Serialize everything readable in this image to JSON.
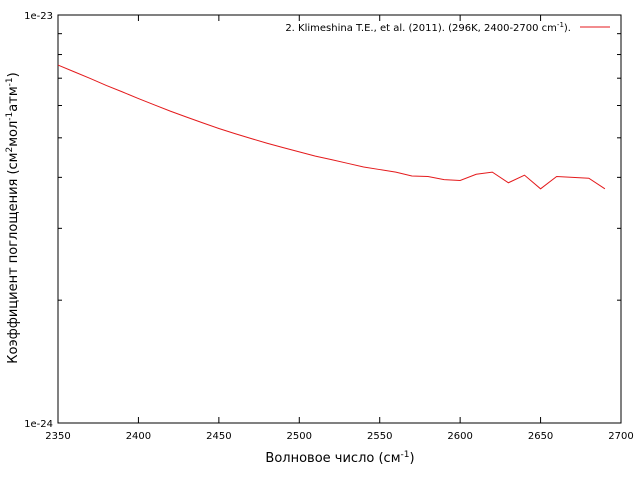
{
  "chart_data": {
    "type": "line",
    "title": "",
    "xlabel": "Волновое число (см",
    "xlabel_sup": "-1",
    "xlabel_tail": ")",
    "ylabel": "Коэффициент поглощения (см",
    "ylabel_sup1": "2",
    "ylabel_mid1": "мол",
    "ylabel_sup2": "-1",
    "ylabel_mid2": "атм",
    "ylabel_sup3": "-1",
    "ylabel_tail": ")",
    "xlim": [
      2350,
      2700
    ],
    "ylim": [
      1e-24,
      1e-23
    ],
    "yscale": "log",
    "grid": false,
    "legend_position": "top-right",
    "x_ticks": [
      "2350",
      "2400",
      "2450",
      "2500",
      "2550",
      "2600",
      "2650",
      "2700"
    ],
    "y_ticks": [
      "1e-24",
      "1e-23"
    ],
    "series": [
      {
        "name": "2. Klimeshina T.E., et al. (2011). (296K, 2400-2700 cm",
        "name_sup": "-1",
        "name_tail": ").",
        "color": "#e41a1c",
        "x": [
          2350,
          2360,
          2370,
          2380,
          2390,
          2400,
          2410,
          2420,
          2430,
          2440,
          2450,
          2460,
          2470,
          2480,
          2490,
          2500,
          2510,
          2520,
          2530,
          2540,
          2550,
          2560,
          2570,
          2580,
          2590,
          2600,
          2610,
          2620,
          2630,
          2640,
          2650,
          2660,
          2670,
          2680,
          2690
        ],
        "y": [
          7.54e-24,
          7.26e-24,
          6.99e-24,
          6.72e-24,
          6.48e-24,
          6.24e-24,
          6.02e-24,
          5.81e-24,
          5.62e-24,
          5.44e-24,
          5.27e-24,
          5.12e-24,
          4.98e-24,
          4.85e-24,
          4.73e-24,
          4.62e-24,
          4.51e-24,
          4.42e-24,
          4.33e-24,
          4.24e-24,
          4.18e-24,
          4.12e-24,
          4.03e-24,
          4.02e-24,
          3.95e-24,
          3.93e-24,
          4.07e-24,
          4.12e-24,
          3.88e-24,
          4.05e-24,
          3.75e-24,
          4.02e-24,
          4e-24,
          3.98e-24,
          3.75e-24
        ]
      }
    ]
  }
}
